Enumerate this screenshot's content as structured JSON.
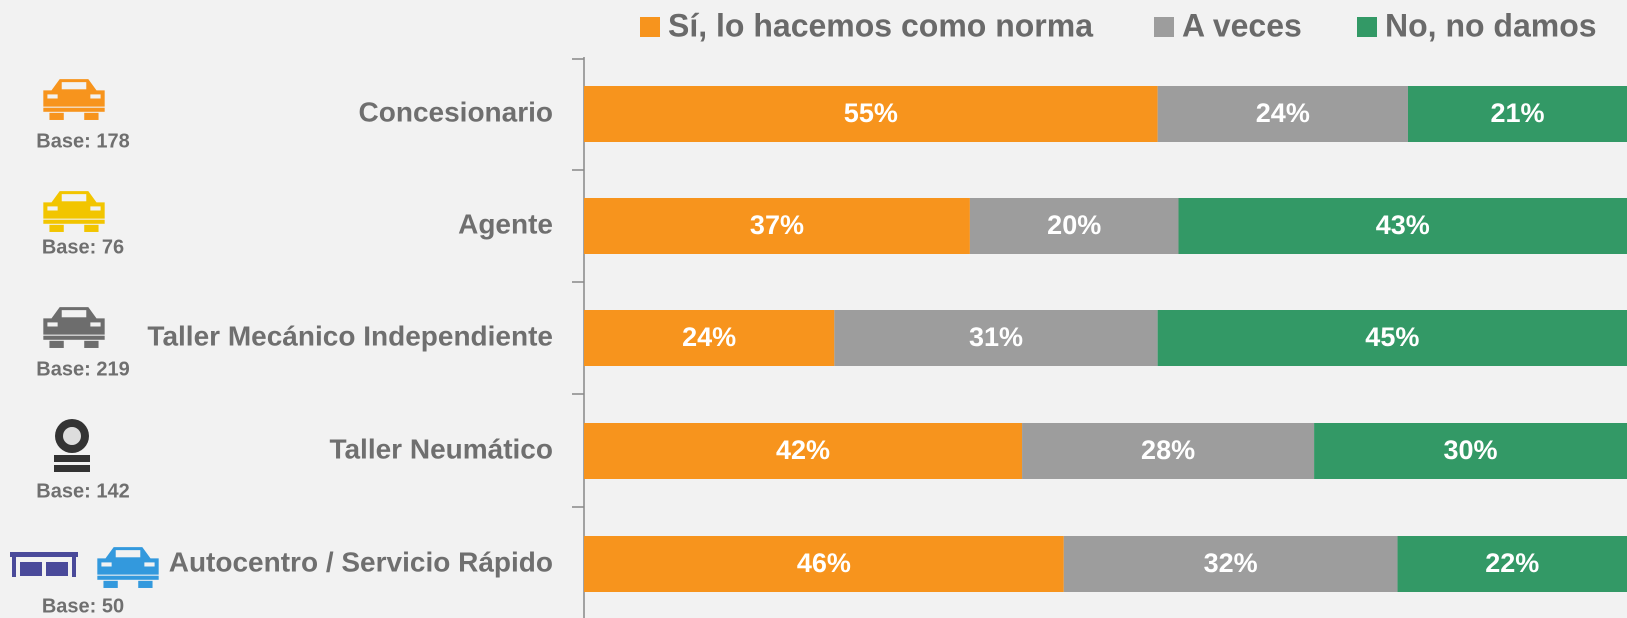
{
  "chart_data": {
    "type": "stacked_bar_horizontal",
    "categories": [
      "Concesionario",
      "Agente",
      "Taller Mecánico Independiente",
      "Taller Neumático",
      "Autocentro / Servicio Rápido"
    ],
    "category_notes": [
      "Base: 178",
      "Base: 76",
      "Base: 219",
      "Base: 142",
      "Base: 50"
    ],
    "series": [
      {
        "name": "Sí, lo hacemos como norma",
        "color": "#f7941d",
        "values": [
          55,
          37,
          24,
          42,
          46
        ],
        "value_labels": [
          "55%",
          "37%",
          "24%",
          "42%",
          "46%"
        ]
      },
      {
        "name": "A veces",
        "color": "#9d9d9d",
        "values": [
          24,
          20,
          31,
          28,
          32
        ],
        "value_labels": [
          "24%",
          "20%",
          "31%",
          "28%",
          "32%"
        ]
      },
      {
        "name": "No, no damos",
        "color": "#339966",
        "values": [
          21,
          43,
          45,
          30,
          22
        ],
        "value_labels": [
          "21%",
          "43%",
          "45%",
          "30%",
          "22%"
        ]
      }
    ],
    "xlim": [
      0,
      100
    ],
    "legend": "top"
  }
}
